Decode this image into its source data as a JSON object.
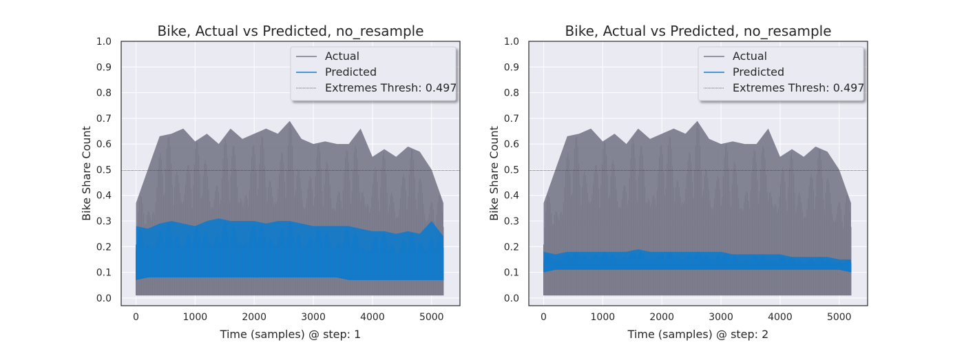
{
  "colors": {
    "background": "#ffffff",
    "plot_bg": "#eaeaf2",
    "grid": "#ffffff",
    "axis_spine": "#262626",
    "actual": "#777888",
    "predicted": "#0f7acb",
    "threshold": "#3a3a3a",
    "text": "#262626"
  },
  "chart_data": [
    {
      "type": "line",
      "title": "Bike, Actual vs Predicted, no_resample",
      "xlabel": "Time (samples) @ step: 1",
      "ylabel": "Bike Share Count",
      "xlim": [
        -250,
        5480
      ],
      "ylim": [
        -0.03,
        1.0
      ],
      "xticks": [
        0,
        1000,
        2000,
        3000,
        4000,
        5000
      ],
      "yticks": [
        0.0,
        0.1,
        0.2,
        0.3,
        0.4,
        0.5,
        0.6,
        0.7,
        0.8,
        0.9,
        1.0
      ],
      "xtick_labels": [
        "0",
        "1000",
        "2000",
        "3000",
        "4000",
        "5000"
      ],
      "ytick_labels": [
        "0.0",
        "0.1",
        "0.2",
        "0.3",
        "0.4",
        "0.5",
        "0.6",
        "0.7",
        "0.8",
        "0.9",
        "1.0"
      ],
      "grid": true,
      "legend_position": "top-right",
      "threshold": 0.497,
      "series": [
        {
          "name": "Actual",
          "style": "band",
          "x": [
            0,
            200,
            400,
            600,
            800,
            1000,
            1200,
            1400,
            1600,
            1800,
            2000,
            2200,
            2400,
            2600,
            2800,
            3000,
            3200,
            3400,
            3600,
            3800,
            4000,
            4200,
            4400,
            4600,
            4800,
            5000,
            5200
          ],
          "high": [
            0.37,
            0.5,
            0.63,
            0.64,
            0.66,
            0.61,
            0.64,
            0.6,
            0.66,
            0.62,
            0.64,
            0.66,
            0.64,
            0.69,
            0.62,
            0.6,
            0.61,
            0.6,
            0.6,
            0.66,
            0.55,
            0.58,
            0.55,
            0.59,
            0.57,
            0.5,
            0.37
          ],
          "low": [
            0.01,
            0.01,
            0.01,
            0.01,
            0.01,
            0.01,
            0.01,
            0.01,
            0.01,
            0.01,
            0.01,
            0.01,
            0.01,
            0.01,
            0.01,
            0.01,
            0.01,
            0.01,
            0.01,
            0.01,
            0.01,
            0.01,
            0.01,
            0.01,
            0.01,
            0.01,
            0.01
          ]
        },
        {
          "name": "Predicted",
          "style": "band",
          "x": [
            0,
            200,
            400,
            600,
            800,
            1000,
            1200,
            1400,
            1600,
            1800,
            2000,
            2200,
            2400,
            2600,
            2800,
            3000,
            3200,
            3400,
            3600,
            3800,
            4000,
            4200,
            4400,
            4600,
            4800,
            5000,
            5200
          ],
          "high": [
            0.28,
            0.27,
            0.29,
            0.3,
            0.29,
            0.28,
            0.3,
            0.31,
            0.3,
            0.3,
            0.3,
            0.29,
            0.3,
            0.3,
            0.29,
            0.28,
            0.28,
            0.28,
            0.28,
            0.27,
            0.26,
            0.26,
            0.25,
            0.26,
            0.25,
            0.3,
            0.24
          ],
          "low": [
            0.07,
            0.08,
            0.08,
            0.08,
            0.08,
            0.08,
            0.08,
            0.08,
            0.08,
            0.08,
            0.08,
            0.08,
            0.08,
            0.08,
            0.08,
            0.08,
            0.08,
            0.08,
            0.07,
            0.07,
            0.07,
            0.07,
            0.07,
            0.07,
            0.07,
            0.07,
            0.07
          ]
        },
        {
          "name": "Extremes Thresh: 0.497",
          "style": "hline",
          "y": 0.497
        }
      ]
    },
    {
      "type": "line",
      "title": "Bike, Actual vs Predicted, no_resample",
      "xlabel": "Time (samples) @ step: 2",
      "ylabel": "Bike Share Count",
      "xlim": [
        -250,
        5480
      ],
      "ylim": [
        -0.03,
        1.0
      ],
      "xticks": [
        0,
        1000,
        2000,
        3000,
        4000,
        5000
      ],
      "yticks": [
        0.0,
        0.1,
        0.2,
        0.3,
        0.4,
        0.5,
        0.6,
        0.7,
        0.8,
        0.9,
        1.0
      ],
      "xtick_labels": [
        "0",
        "1000",
        "2000",
        "3000",
        "4000",
        "5000"
      ],
      "ytick_labels": [
        "0.0",
        "0.1",
        "0.2",
        "0.3",
        "0.4",
        "0.5",
        "0.6",
        "0.7",
        "0.8",
        "0.9",
        "1.0"
      ],
      "grid": true,
      "legend_position": "top-right",
      "threshold": 0.497,
      "series": [
        {
          "name": "Actual",
          "style": "band",
          "x": [
            0,
            200,
            400,
            600,
            800,
            1000,
            1200,
            1400,
            1600,
            1800,
            2000,
            2200,
            2400,
            2600,
            2800,
            3000,
            3200,
            3400,
            3600,
            3800,
            4000,
            4200,
            4400,
            4600,
            4800,
            5000,
            5200
          ],
          "high": [
            0.37,
            0.5,
            0.63,
            0.64,
            0.66,
            0.61,
            0.64,
            0.6,
            0.66,
            0.62,
            0.64,
            0.66,
            0.64,
            0.69,
            0.62,
            0.6,
            0.61,
            0.6,
            0.6,
            0.66,
            0.55,
            0.58,
            0.55,
            0.59,
            0.57,
            0.5,
            0.37
          ],
          "low": [
            0.01,
            0.01,
            0.01,
            0.01,
            0.01,
            0.01,
            0.01,
            0.01,
            0.01,
            0.01,
            0.01,
            0.01,
            0.01,
            0.01,
            0.01,
            0.01,
            0.01,
            0.01,
            0.01,
            0.01,
            0.01,
            0.01,
            0.01,
            0.01,
            0.01,
            0.01,
            0.01
          ]
        },
        {
          "name": "Predicted",
          "style": "band",
          "x": [
            0,
            200,
            400,
            600,
            800,
            1000,
            1200,
            1400,
            1600,
            1800,
            2000,
            2200,
            2400,
            2600,
            2800,
            3000,
            3200,
            3400,
            3600,
            3800,
            4000,
            4200,
            4400,
            4600,
            4800,
            5000,
            5200
          ],
          "high": [
            0.18,
            0.17,
            0.18,
            0.18,
            0.18,
            0.18,
            0.18,
            0.18,
            0.19,
            0.18,
            0.18,
            0.18,
            0.18,
            0.18,
            0.18,
            0.18,
            0.17,
            0.17,
            0.17,
            0.17,
            0.17,
            0.16,
            0.16,
            0.16,
            0.16,
            0.15,
            0.15
          ],
          "low": [
            0.1,
            0.11,
            0.11,
            0.11,
            0.11,
            0.11,
            0.11,
            0.11,
            0.11,
            0.11,
            0.11,
            0.11,
            0.11,
            0.11,
            0.11,
            0.11,
            0.11,
            0.11,
            0.11,
            0.11,
            0.11,
            0.11,
            0.11,
            0.11,
            0.11,
            0.11,
            0.1
          ]
        },
        {
          "name": "Extremes Thresh: 0.497",
          "style": "hline",
          "y": 0.497
        }
      ]
    }
  ]
}
